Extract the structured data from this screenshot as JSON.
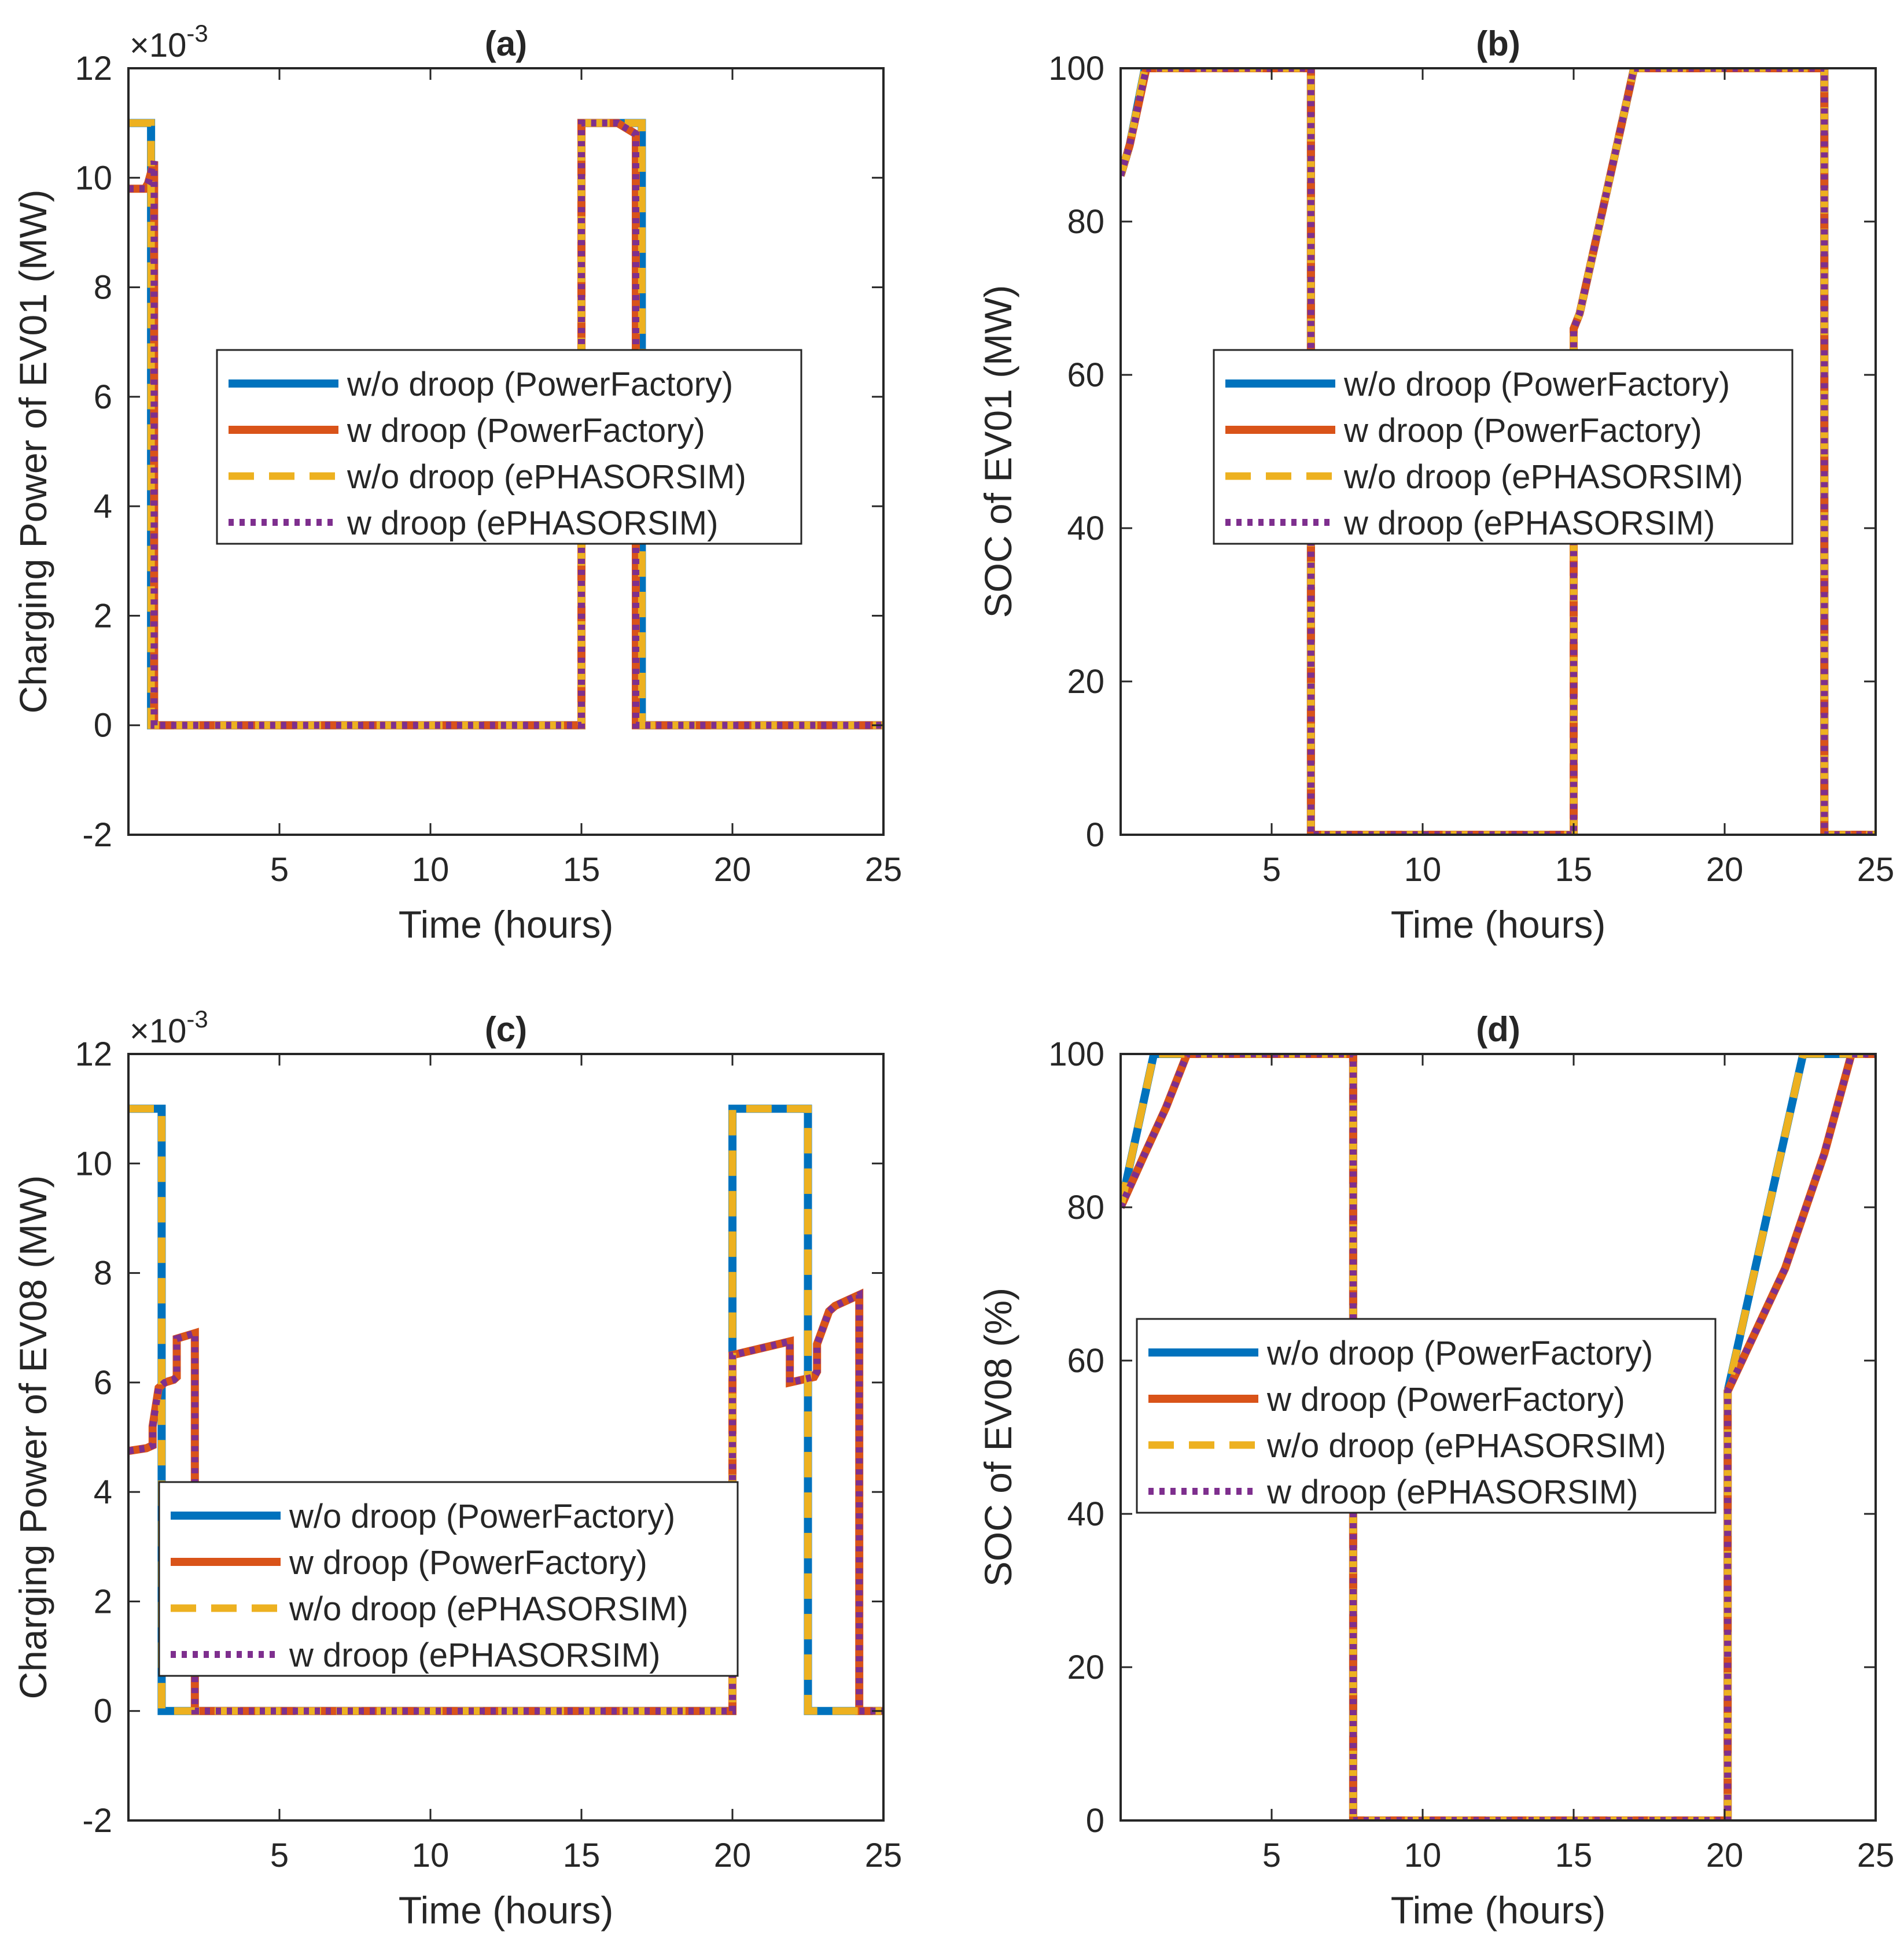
{
  "legend_labels": [
    "w/o droop (PowerFactory)",
    "w droop (PowerFactory)",
    "w/o droop (ePHASORSIM)",
    "w droop (ePHASORSIM)"
  ],
  "series_colors": [
    "#0072BD",
    "#D95319",
    "#EDB120",
    "#7E2F8E"
  ],
  "chart_data": [
    {
      "type": "line",
      "title": "(a)",
      "xlabel": "Time (hours)",
      "ylabel": "Charging Power of EV01 (MW)",
      "multiplier": {
        "base": "×10",
        "exponent": "-3"
      },
      "xlim": [
        0,
        25
      ],
      "ylim": [
        -2,
        12
      ],
      "xticks": [
        5,
        10,
        15,
        20,
        25
      ],
      "yticks": [
        -2,
        0,
        2,
        4,
        6,
        8,
        10,
        12
      ],
      "legend": "center",
      "series": [
        {
          "name": "w/o droop (PowerFactory)",
          "x": [
            0,
            0.75,
            0.75,
            15,
            15,
            17,
            17,
            25
          ],
          "y": [
            11,
            11,
            0,
            0,
            11,
            11,
            0,
            0
          ]
        },
        {
          "name": "w droop (PowerFactory)",
          "x": [
            0,
            0.55,
            0.65,
            0.85,
            0.85,
            15,
            15,
            16.2,
            16.8,
            16.8,
            25
          ],
          "y": [
            9.8,
            9.8,
            9.9,
            10.3,
            0,
            0,
            11,
            11,
            10.8,
            0,
            0
          ]
        },
        {
          "name": "w/o droop (ePHASORSIM)",
          "x": [
            0,
            0.75,
            0.75,
            15,
            15,
            17,
            17,
            25
          ],
          "y": [
            11,
            11,
            0,
            0,
            11,
            11,
            0,
            0
          ]
        },
        {
          "name": "w droop (ePHASORSIM)",
          "x": [
            0,
            0.55,
            0.65,
            0.85,
            0.85,
            15,
            15,
            16.2,
            16.8,
            16.8,
            25
          ],
          "y": [
            9.8,
            9.8,
            9.9,
            10.3,
            0,
            0,
            11,
            11,
            10.8,
            0,
            0
          ]
        }
      ]
    },
    {
      "type": "line",
      "title": "(b)",
      "xlabel": "Time (hours)",
      "ylabel": "SOC of EV01 (MW)",
      "xlim": [
        0,
        25
      ],
      "ylim": [
        0,
        100
      ],
      "xticks": [
        5,
        10,
        15,
        20,
        25
      ],
      "yticks": [
        0,
        20,
        40,
        60,
        80,
        100
      ],
      "legend": "center",
      "series": [
        {
          "name": "w/o droop (PowerFactory)",
          "x": [
            0,
            0.3,
            0.8,
            6.3,
            6.3,
            15,
            15,
            15.2,
            17,
            23.3,
            23.3,
            25
          ],
          "y": [
            86,
            90,
            100,
            100,
            0,
            0,
            66,
            68,
            100,
            100,
            0,
            0
          ]
        },
        {
          "name": "w droop (PowerFactory)",
          "x": [
            0,
            0.3,
            0.85,
            6.3,
            6.3,
            15,
            15,
            15.2,
            17,
            23.3,
            23.3,
            25
          ],
          "y": [
            86,
            90,
            100,
            100,
            0,
            0,
            66,
            68,
            100,
            100,
            0,
            0
          ]
        },
        {
          "name": "w/o droop (ePHASORSIM)",
          "x": [
            0,
            0.3,
            0.8,
            6.3,
            6.3,
            15,
            15,
            15.2,
            17,
            23.3,
            23.3,
            25
          ],
          "y": [
            86,
            90,
            100,
            100,
            0,
            0,
            66,
            68,
            100,
            100,
            0,
            0
          ]
        },
        {
          "name": "w droop (ePHASORSIM)",
          "x": [
            0,
            0.3,
            0.85,
            6.3,
            6.3,
            15,
            15,
            15.2,
            17,
            23.3,
            23.3,
            25
          ],
          "y": [
            86,
            90,
            100,
            100,
            0,
            0,
            66,
            68,
            100,
            100,
            0,
            0
          ]
        }
      ]
    },
    {
      "type": "line",
      "title": "(c)",
      "xlabel": "Time (hours)",
      "ylabel": "Charging Power of EV08 (MW)",
      "multiplier": {
        "base": "×10",
        "exponent": "-3"
      },
      "xlim": [
        0,
        25
      ],
      "ylim": [
        -2,
        12
      ],
      "xticks": [
        5,
        10,
        15,
        20,
        25
      ],
      "yticks": [
        -2,
        0,
        2,
        4,
        6,
        8,
        10,
        12
      ],
      "legend": "bottom-left",
      "series": [
        {
          "name": "w/o droop (PowerFactory)",
          "x": [
            0,
            1.1,
            1.1,
            20,
            20,
            22.5,
            22.5,
            25
          ],
          "y": [
            11,
            11,
            0,
            0,
            11,
            11,
            0,
            0
          ]
        },
        {
          "name": "w droop (PowerFactory)",
          "x": [
            0,
            0.6,
            0.8,
            0.8,
            1.0,
            1.2,
            1.2,
            1.5,
            1.6,
            1.6,
            2.2,
            2.2,
            20,
            20,
            21.9,
            21.9,
            22.7,
            22.8,
            22.8,
            23.2,
            23.4,
            23.4,
            24.2,
            24.2,
            25
          ],
          "y": [
            4.75,
            4.8,
            4.85,
            5.2,
            5.9,
            6.0,
            6.0,
            6.05,
            6.1,
            6.8,
            6.9,
            0,
            0,
            6.5,
            6.75,
            6.0,
            6.1,
            6.2,
            6.7,
            7.3,
            7.4,
            7.4,
            7.6,
            0,
            0
          ]
        },
        {
          "name": "w/o droop (ePHASORSIM)",
          "x": [
            0,
            1.1,
            1.1,
            20,
            20,
            22.5,
            22.5,
            25
          ],
          "y": [
            11,
            11,
            0,
            0,
            11,
            11,
            0,
            0
          ]
        },
        {
          "name": "w droop (ePHASORSIM)",
          "x": [
            0,
            0.6,
            0.8,
            0.8,
            1.0,
            1.2,
            1.2,
            1.5,
            1.6,
            1.6,
            2.2,
            2.2,
            20,
            20,
            21.9,
            21.9,
            22.7,
            22.8,
            22.8,
            23.2,
            23.4,
            23.4,
            24.2,
            24.2,
            25
          ],
          "y": [
            4.75,
            4.8,
            4.85,
            5.2,
            5.9,
            6.0,
            6.0,
            6.05,
            6.1,
            6.8,
            6.9,
            0,
            0,
            6.5,
            6.75,
            6.0,
            6.1,
            6.2,
            6.7,
            7.3,
            7.4,
            7.4,
            7.6,
            0,
            0
          ]
        }
      ]
    },
    {
      "type": "line",
      "title": "(d)",
      "xlabel": "Time (hours)",
      "ylabel": "SOC of EV08 (%)",
      "xlim": [
        0,
        25
      ],
      "ylim": [
        0,
        100
      ],
      "xticks": [
        5,
        10,
        15,
        20,
        25
      ],
      "yticks": [
        0,
        20,
        40,
        60,
        80,
        100
      ],
      "legend": "left",
      "series": [
        {
          "name": "w/o droop (PowerFactory)",
          "x": [
            0,
            1.1,
            7.7,
            7.7,
            20.1,
            20.1,
            22.6,
            25
          ],
          "y": [
            80,
            100,
            100,
            0,
            0,
            56,
            100,
            100
          ]
        },
        {
          "name": "w droop (PowerFactory)",
          "x": [
            0,
            0.8,
            1.5,
            2.2,
            7.7,
            7.7,
            20.1,
            20.1,
            22.0,
            23.3,
            24.2,
            25
          ],
          "y": [
            80,
            87,
            93,
            100,
            100,
            0,
            0,
            56,
            72,
            87,
            100,
            100
          ]
        },
        {
          "name": "w/o droop (ePHASORSIM)",
          "x": [
            0,
            1.1,
            7.7,
            7.7,
            20.1,
            20.1,
            22.6,
            25
          ],
          "y": [
            80,
            100,
            100,
            0,
            0,
            56,
            100,
            100
          ]
        },
        {
          "name": "w droop (ePHASORSIM)",
          "x": [
            0,
            0.8,
            1.5,
            2.2,
            7.7,
            7.7,
            20.1,
            20.1,
            22.0,
            23.3,
            24.2,
            25
          ],
          "y": [
            80,
            87,
            93,
            100,
            100,
            0,
            0,
            56,
            72,
            87,
            100,
            100
          ]
        }
      ]
    }
  ]
}
